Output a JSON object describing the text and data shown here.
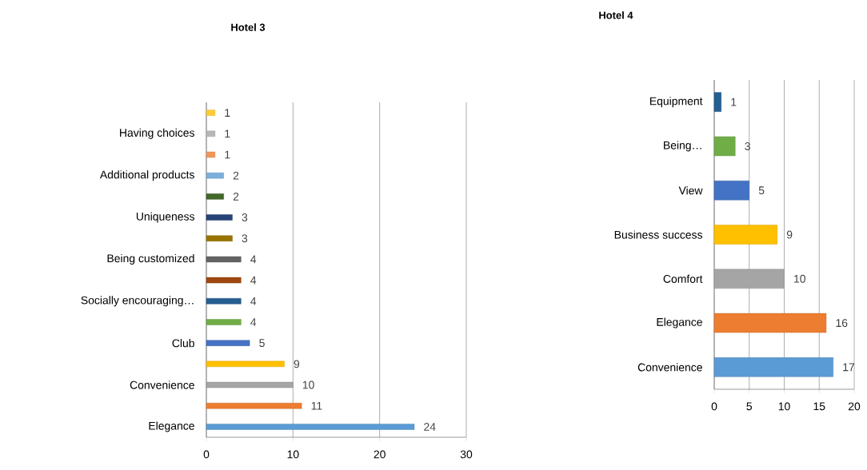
{
  "chart_data": [
    {
      "type": "bar",
      "title": "Hotel 3",
      "orientation": "horizontal",
      "categories": [
        null,
        "Having choices",
        null,
        "Additional products",
        null,
        "Uniqueness",
        null,
        "Being customized",
        null,
        "Socially encouraging…",
        null,
        "Club",
        null,
        "Convenience",
        null,
        "Elegance"
      ],
      "values": [
        1,
        1,
        1,
        2,
        2,
        3,
        3,
        4,
        4,
        4,
        4,
        5,
        9,
        10,
        11,
        24
      ],
      "colors": [
        "#ffcd33",
        "#b7b7b7",
        "#f1975a",
        "#7cafdd",
        "#43682b",
        "#264478",
        "#997300",
        "#636363",
        "#9e480e",
        "#255e91",
        "#70ad47",
        "#4472c4",
        "#ffc000",
        "#a5a5a5",
        "#ed7d31",
        "#5b9bd5"
      ],
      "xlim": [
        0,
        30
      ],
      "xticks": [
        0,
        10,
        20,
        30
      ],
      "grid": "x",
      "data_labels": true
    },
    {
      "type": "bar",
      "title": "Hotel 4",
      "orientation": "horizontal",
      "categories": [
        "Equipment",
        "Being…",
        "View",
        "Business success",
        "Comfort",
        "Elegance",
        "Convenience"
      ],
      "values": [
        1,
        3,
        5,
        9,
        10,
        16,
        17
      ],
      "colors": [
        "#255e91",
        "#70ad47",
        "#4472c4",
        "#ffc000",
        "#a5a5a5",
        "#ed7d31",
        "#5b9bd5"
      ],
      "xlim": [
        0,
        20
      ],
      "xticks": [
        0,
        5,
        10,
        15,
        20
      ],
      "grid": "x",
      "data_labels": true
    }
  ]
}
